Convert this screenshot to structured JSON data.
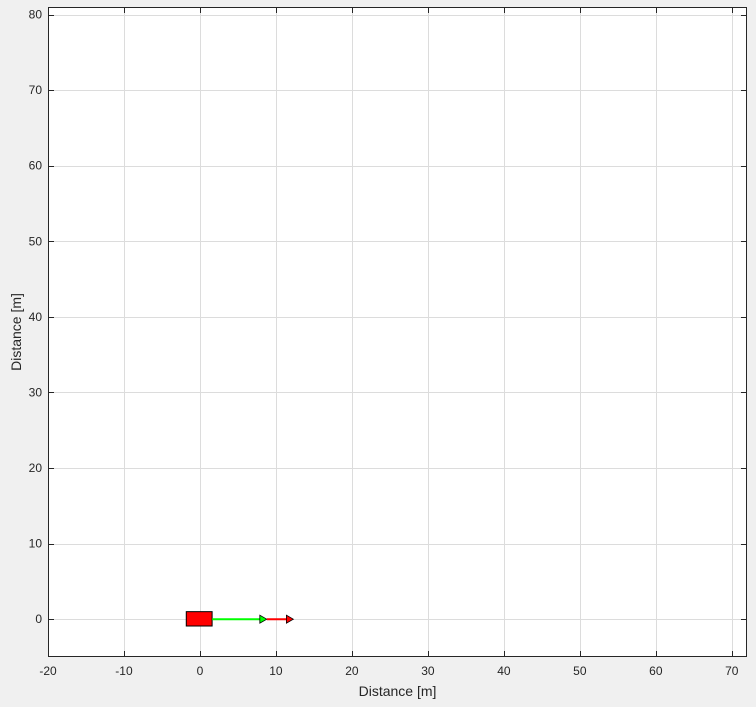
{
  "chart_data": {
    "type": "scatter",
    "title": "",
    "xlabel": "Distance [m]",
    "ylabel": "Distance [m]",
    "xlim": [
      -20,
      72
    ],
    "ylim": [
      -5,
      81
    ],
    "xticks": [
      -20,
      -10,
      0,
      10,
      20,
      30,
      40,
      50,
      60,
      70
    ],
    "yticks": [
      0,
      10,
      20,
      30,
      40,
      50,
      60,
      70,
      80
    ],
    "grid": true,
    "legend": "none",
    "objects": [
      {
        "kind": "vehicle",
        "shape": "rectangle",
        "x_range": [
          -1.8,
          1.6
        ],
        "y_range": [
          -0.9,
          1.0
        ],
        "color": "#ff0000"
      },
      {
        "kind": "arrow",
        "from": [
          1.6,
          0
        ],
        "to": [
          8.8,
          0
        ],
        "color": "#00ff00"
      },
      {
        "kind": "arrow",
        "from": [
          8.8,
          0
        ],
        "to": [
          12.3,
          0
        ],
        "color": "#ff0000"
      }
    ]
  },
  "colors": {
    "background": "#f0f0f0",
    "axes_background": "#ffffff",
    "axis": "#262626",
    "grid": "#dcdcdc",
    "vehicle": "#ff0000",
    "green_arrow": "#00ff00",
    "red_arrow": "#ff0000"
  }
}
